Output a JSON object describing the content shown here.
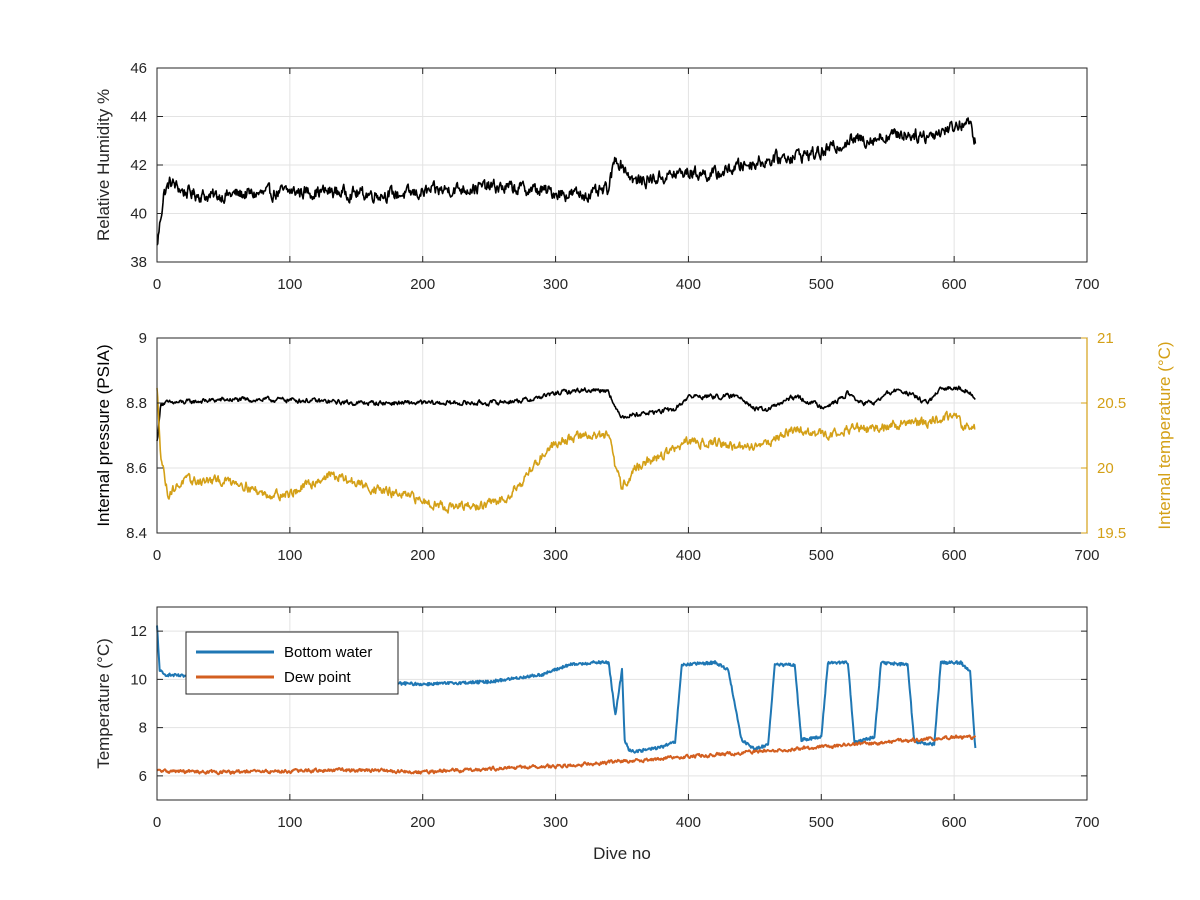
{
  "chart_data": [
    {
      "type": "line",
      "xlim": [
        0,
        700
      ],
      "ylim": [
        38,
        46
      ],
      "xticks": [
        "0",
        "100",
        "200",
        "300",
        "400",
        "500",
        "600",
        "700"
      ],
      "yticks": [
        "38",
        "40",
        "42",
        "44",
        "46"
      ],
      "xlabel": "",
      "ylabel": "Relative Humidity %",
      "grid": true,
      "series": [
        {
          "color": "#000000",
          "x": [
            0,
            2,
            5,
            10,
            20,
            40,
            60,
            80,
            100,
            130,
            160,
            190,
            220,
            250,
            280,
            310,
            330,
            340,
            345,
            350,
            360,
            380,
            400,
            420,
            440,
            460,
            480,
            500,
            520,
            540,
            560,
            580,
            600,
            610,
            616
          ],
          "values": [
            38.6,
            39.5,
            40.8,
            41.3,
            40.9,
            40.7,
            40.8,
            40.8,
            40.9,
            40.9,
            40.8,
            40.8,
            41.0,
            41.1,
            41.0,
            40.8,
            40.8,
            41.0,
            42.3,
            42.0,
            41.3,
            41.5,
            41.7,
            41.6,
            42.0,
            42.2,
            42.4,
            42.5,
            43.0,
            43.1,
            43.3,
            43.2,
            43.6,
            43.8,
            43.0
          ]
        }
      ]
    },
    {
      "type": "line",
      "xlim": [
        0,
        700
      ],
      "ylim": [
        8.4,
        9
      ],
      "y2lim": [
        19.5,
        21
      ],
      "xticks": [
        "0",
        "100",
        "200",
        "300",
        "400",
        "500",
        "600",
        "700"
      ],
      "yticks": [
        "8.4",
        "8.6",
        "8.8",
        "9"
      ],
      "y2ticks": [
        "19.5",
        "20",
        "20.5",
        "21"
      ],
      "xlabel": "",
      "ylabel": "Internal pressure (PSIA)",
      "y2label": "Internal temperature (°C)",
      "grid": true,
      "series": [
        {
          "axis": "left",
          "color": "#000000",
          "x": [
            0,
            3,
            10,
            50,
            100,
            150,
            200,
            250,
            280,
            300,
            320,
            340,
            345,
            350,
            370,
            390,
            400,
            440,
            450,
            460,
            480,
            500,
            510,
            520,
            530,
            540,
            550,
            560,
            570,
            580,
            590,
            600,
            610,
            616
          ],
          "values": [
            8.68,
            8.8,
            8.8,
            8.81,
            8.81,
            8.8,
            8.8,
            8.8,
            8.81,
            8.83,
            8.84,
            8.84,
            8.78,
            8.76,
            8.77,
            8.78,
            8.82,
            8.82,
            8.78,
            8.78,
            8.82,
            8.79,
            8.8,
            8.83,
            8.8,
            8.8,
            8.83,
            8.84,
            8.82,
            8.8,
            8.84,
            8.85,
            8.84,
            8.81
          ]
        },
        {
          "axis": "right",
          "color": "#D4A017",
          "x": [
            0,
            3,
            8,
            20,
            40,
            60,
            80,
            100,
            130,
            160,
            180,
            200,
            220,
            240,
            260,
            275,
            290,
            300,
            320,
            340,
            345,
            350,
            360,
            380,
            400,
            420,
            440,
            460,
            480,
            500,
            520,
            540,
            560,
            580,
            600,
            610,
            616
          ],
          "values": [
            20.6,
            20.1,
            19.8,
            19.9,
            19.9,
            19.9,
            19.8,
            19.8,
            19.95,
            19.85,
            19.8,
            19.75,
            19.7,
            19.7,
            19.75,
            19.9,
            20.1,
            20.2,
            20.25,
            20.25,
            20.0,
            19.85,
            20.0,
            20.1,
            20.2,
            20.2,
            20.15,
            20.2,
            20.3,
            20.25,
            20.3,
            20.3,
            20.35,
            20.35,
            20.4,
            20.3,
            20.3
          ]
        }
      ]
    },
    {
      "type": "line",
      "xlim": [
        0,
        700
      ],
      "ylim": [
        5,
        13
      ],
      "xticks": [
        "0",
        "100",
        "200",
        "300",
        "400",
        "500",
        "600",
        "700"
      ],
      "yticks": [
        "6",
        "8",
        "10",
        "12"
      ],
      "xlabel": "Dive no",
      "ylabel": "Temperature (°C)",
      "grid": true,
      "legend": "top-left",
      "series": [
        {
          "name": "Bottom water",
          "color": "#1F77B4",
          "x": [
            0,
            2,
            5,
            30,
            60,
            100,
            150,
            200,
            250,
            290,
            300,
            310,
            330,
            340,
            345,
            350,
            352,
            355,
            360,
            380,
            390,
            395,
            420,
            430,
            440,
            450,
            460,
            465,
            480,
            485,
            500,
            505,
            520,
            525,
            540,
            545,
            565,
            570,
            585,
            590,
            605,
            612,
            616
          ],
          "values": [
            12.2,
            10.4,
            10.2,
            10.1,
            10.1,
            10.0,
            9.9,
            9.8,
            9.9,
            10.2,
            10.4,
            10.6,
            10.7,
            10.7,
            8.5,
            10.4,
            7.5,
            7.1,
            7.0,
            7.2,
            7.4,
            10.6,
            10.7,
            10.4,
            7.5,
            7.1,
            7.3,
            10.6,
            10.6,
            7.5,
            7.6,
            10.7,
            10.7,
            7.4,
            7.6,
            10.7,
            10.6,
            7.4,
            7.3,
            10.7,
            10.7,
            10.3,
            7.1
          ]
        },
        {
          "name": "Dew point",
          "color": "#D35F20",
          "x": [
            0,
            50,
            100,
            150,
            200,
            250,
            300,
            350,
            400,
            450,
            500,
            550,
            600,
            616
          ],
          "values": [
            6.2,
            6.15,
            6.2,
            6.25,
            6.15,
            6.3,
            6.4,
            6.6,
            6.8,
            7.0,
            7.2,
            7.4,
            7.6,
            7.6
          ]
        }
      ]
    }
  ]
}
